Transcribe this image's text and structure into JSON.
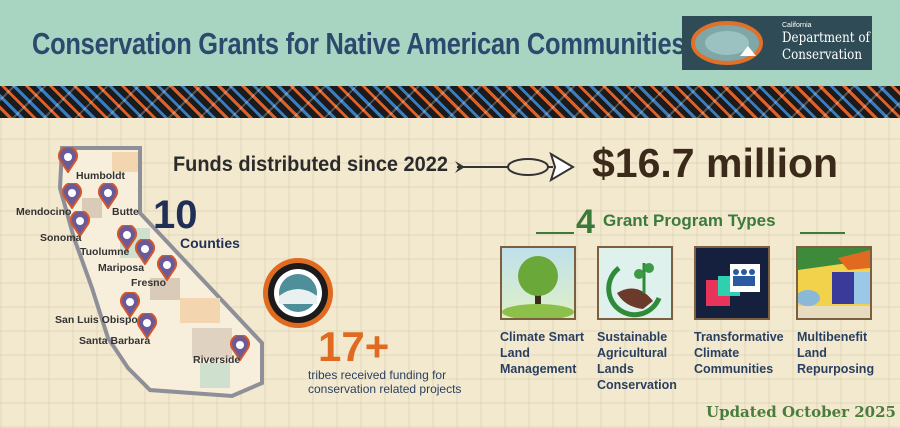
{
  "header": {
    "title": "Conservation Grants for Native American Communities",
    "logo": {
      "line1": "California",
      "line2": "Department of",
      "line3": "Conservation"
    }
  },
  "funds": {
    "label": "Funds distributed since 2022",
    "amount": "$16.7 million"
  },
  "counties": {
    "count": "10",
    "label": "Counties",
    "names": [
      "Humboldt",
      "Mendocino",
      "Butte",
      "Sonoma",
      "Tuolumne",
      "Mariposa",
      "Fresno",
      "San Luis Obispo",
      "Santa Barbara",
      "Riverside"
    ]
  },
  "tribes": {
    "count": "17+",
    "line1": "tribes received funding for",
    "line2": "conservation related projects"
  },
  "programs": {
    "count": "4",
    "heading": "Grant Program Types",
    "items": [
      {
        "label": "Climate Smart Land Management",
        "icon": "tree-icon"
      },
      {
        "label": "Sustainable Agricultural Lands Conservation",
        "icon": "farm-sprout-icon"
      },
      {
        "label": "Transformative Climate Communities",
        "icon": "community-arrow-icon"
      },
      {
        "label": "Multibenefit Land Repurposing",
        "icon": "land-repurposing-icon"
      }
    ]
  },
  "footer": {
    "updated": "Updated October 2025"
  },
  "colors": {
    "header": "#a8d4c2",
    "title": "#2d4a6e",
    "accent_orange": "#e06a1f",
    "accent_green": "#3c7a3a",
    "navy": "#1f2f55"
  }
}
